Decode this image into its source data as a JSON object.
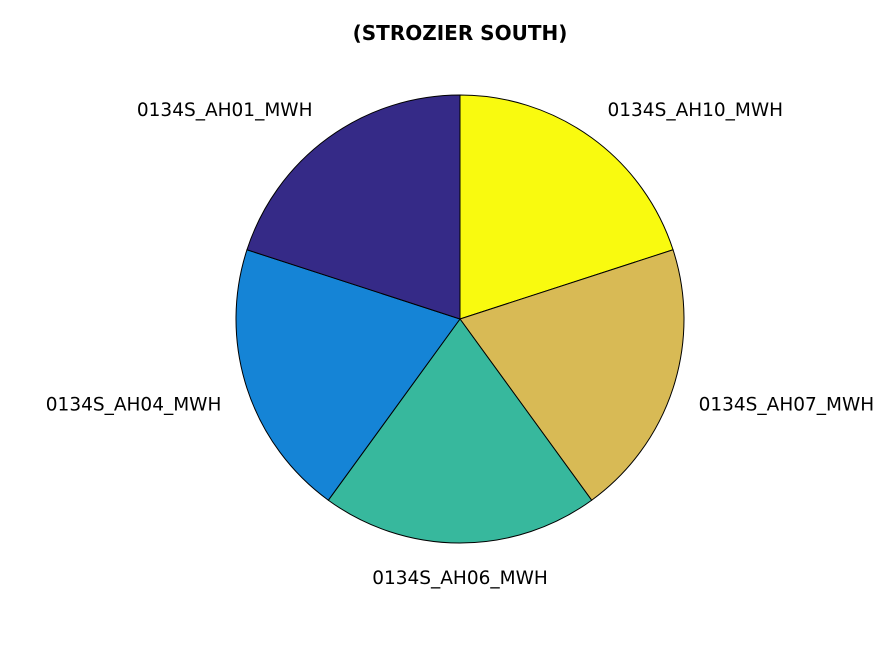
{
  "chart_data": {
    "type": "pie",
    "title": "(STROZIER SOUTH)",
    "slices": [
      {
        "label": "0134S_AH10_MWH",
        "value": 20,
        "color": "#f9fa0f"
      },
      {
        "label": "0134S_AH07_MWH",
        "value": 20,
        "color": "#d8ba55"
      },
      {
        "label": "0134S_AH06_MWH",
        "value": 20,
        "color": "#37b89d"
      },
      {
        "label": "0134S_AH04_MWH",
        "value": 20,
        "color": "#1584d6"
      },
      {
        "label": "0134S_AH01_MWH",
        "value": 20,
        "color": "#352a87"
      }
    ],
    "start_angle": "top",
    "direction": "clockwise",
    "legend": "none"
  }
}
